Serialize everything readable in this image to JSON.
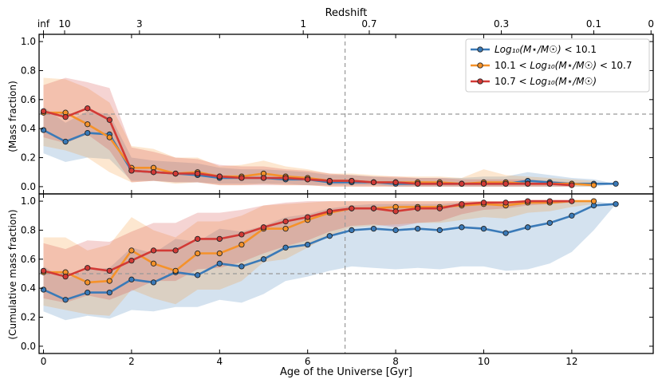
{
  "figure": {
    "top_axis_label": "Redshift",
    "top_ticks": [
      {
        "label": "inf",
        "age": 0
      },
      {
        "label": "10",
        "age": 0.48
      },
      {
        "label": "3",
        "age": 2.18
      },
      {
        "label": "1",
        "age": 5.9
      },
      {
        "label": "0.7",
        "age": 7.4
      },
      {
        "label": "0.3",
        "age": 10.4
      },
      {
        "label": "0.1",
        "age": 12.5
      },
      {
        "label": "0",
        "age": 13.8
      }
    ],
    "xlabel": "Age of the Universe [Gyr]",
    "x_ticks": [
      0,
      2,
      4,
      6,
      8,
      10,
      12
    ],
    "xlim": [
      -0.1,
      13.85
    ],
    "vline_x": 6.85,
    "hline_y": 0.5,
    "legend": {
      "entries": [
        {
          "prefix": "",
          "math": "Log₁₀(M⋆/M☉)",
          "suffix": " < 10.1",
          "color": "#3a7ab8"
        },
        {
          "prefix": "10.1 < ",
          "math": "Log₁₀(M⋆/M☉)",
          "suffix": " < 10.7",
          "color": "#f5922a"
        },
        {
          "prefix": "10.7 < ",
          "math": "Log₁₀(M⋆/M☉)",
          "suffix": "",
          "color": "#d23a36"
        }
      ]
    }
  },
  "chart_data": [
    {
      "type": "line",
      "panel": "top",
      "ylabel": "(Mass fraction)",
      "ylim": [
        -0.05,
        1.05
      ],
      "y_ticks": [
        "0.0",
        "0.2",
        "0.4",
        "0.6",
        "0.8",
        "1.0"
      ],
      "series": [
        {
          "name": "Log₁₀(M⋆/M☉) < 10.1",
          "color": "#3a7ab8",
          "x": [
            0,
            0.5,
            1.0,
            1.5,
            2.0,
            2.5,
            3.0,
            3.5,
            4.0,
            4.5,
            5.0,
            5.5,
            6.0,
            6.5,
            7.0,
            7.5,
            8.0,
            8.5,
            9.0,
            9.5,
            10.0,
            10.5,
            11.0,
            11.5,
            12.0,
            12.5,
            13.0
          ],
          "y": [
            0.39,
            0.31,
            0.37,
            0.36,
            0.11,
            0.1,
            0.09,
            0.08,
            0.06,
            0.06,
            0.06,
            0.05,
            0.05,
            0.03,
            0.03,
            0.03,
            0.02,
            0.02,
            0.02,
            0.02,
            0.02,
            0.02,
            0.04,
            0.03,
            0.02,
            0.02,
            0.02
          ],
          "band_low": [
            0.23,
            0.17,
            0.2,
            0.19,
            0.04,
            0.04,
            0.03,
            0.03,
            0.02,
            0.02,
            0.02,
            0.02,
            0.01,
            0.01,
            0.01,
            0.01,
            0.0,
            0.0,
            0.0,
            0.0,
            0.0,
            0.0,
            0.0,
            0.0,
            0.0,
            0.0,
            0.02
          ],
          "band_high": [
            0.55,
            0.44,
            0.52,
            0.5,
            0.2,
            0.18,
            0.17,
            0.16,
            0.13,
            0.12,
            0.12,
            0.11,
            0.1,
            0.08,
            0.08,
            0.07,
            0.06,
            0.06,
            0.06,
            0.06,
            0.07,
            0.07,
            0.1,
            0.08,
            0.06,
            0.05,
            0.02
          ]
        },
        {
          "name": "10.1 < Log₁₀(M⋆/M☉) < 10.7",
          "color": "#f5922a",
          "x": [
            0,
            0.5,
            1.0,
            1.5,
            2.0,
            2.5,
            3.0,
            3.5,
            4.0,
            4.5,
            5.0,
            5.5,
            6.0,
            6.5,
            7.0,
            7.5,
            8.0,
            8.5,
            9.0,
            9.5,
            10.0,
            10.5,
            11.0,
            11.5,
            12.0,
            12.5
          ],
          "y": [
            0.51,
            0.51,
            0.43,
            0.34,
            0.13,
            0.13,
            0.09,
            0.1,
            0.07,
            0.07,
            0.09,
            0.07,
            0.06,
            0.04,
            0.04,
            0.03,
            0.03,
            0.03,
            0.03,
            0.02,
            0.03,
            0.03,
            0.02,
            0.02,
            0.02,
            0.01
          ],
          "band_low": [
            0.28,
            0.25,
            0.2,
            0.1,
            0.03,
            0.04,
            0.02,
            0.03,
            0.01,
            0.01,
            0.02,
            0.01,
            0.01,
            0.0,
            0.0,
            0.0,
            0.0,
            0.0,
            0.0,
            0.0,
            0.0,
            0.0,
            0.0,
            0.0,
            0.0,
            0.0
          ],
          "band_high": [
            0.75,
            0.74,
            0.68,
            0.58,
            0.28,
            0.26,
            0.2,
            0.2,
            0.14,
            0.15,
            0.18,
            0.14,
            0.12,
            0.09,
            0.09,
            0.08,
            0.07,
            0.07,
            0.07,
            0.06,
            0.12,
            0.08,
            0.07,
            0.06,
            0.05,
            0.04
          ]
        },
        {
          "name": "10.7 < Log₁₀(M⋆/M☉)",
          "color": "#d23a36",
          "x": [
            0,
            0.5,
            1.0,
            1.5,
            2.0,
            2.5,
            3.0,
            3.5,
            4.0,
            4.5,
            5.0,
            5.5,
            6.0,
            6.5,
            7.0,
            7.5,
            8.0,
            8.5,
            9.0,
            9.5,
            10.0,
            10.5,
            11.0,
            11.5,
            12.0
          ],
          "y": [
            0.52,
            0.48,
            0.54,
            0.46,
            0.11,
            0.1,
            0.09,
            0.09,
            0.07,
            0.06,
            0.06,
            0.06,
            0.05,
            0.04,
            0.04,
            0.03,
            0.03,
            0.02,
            0.02,
            0.02,
            0.02,
            0.02,
            0.02,
            0.02,
            0.01
          ],
          "band_low": [
            0.34,
            0.3,
            0.36,
            0.25,
            0.03,
            0.04,
            0.03,
            0.03,
            0.01,
            0.01,
            0.01,
            0.01,
            0.01,
            0.0,
            0.0,
            0.0,
            0.0,
            0.0,
            0.0,
            0.0,
            0.0,
            0.0,
            0.0,
            0.0,
            0.0
          ],
          "band_high": [
            0.7,
            0.75,
            0.72,
            0.68,
            0.27,
            0.24,
            0.2,
            0.19,
            0.15,
            0.14,
            0.14,
            0.12,
            0.11,
            0.09,
            0.08,
            0.07,
            0.07,
            0.06,
            0.06,
            0.05,
            0.05,
            0.05,
            0.05,
            0.04,
            0.03
          ]
        }
      ]
    },
    {
      "type": "line",
      "panel": "bottom",
      "ylabel": "(Cumulative mass fraction)",
      "ylim": [
        -0.05,
        1.05
      ],
      "y_ticks": [
        "0.0",
        "0.2",
        "0.4",
        "0.6",
        "0.8",
        "1.0"
      ],
      "series": [
        {
          "name": "Log₁₀(M⋆/M☉) < 10.1",
          "color": "#3a7ab8",
          "x": [
            0,
            0.5,
            1.0,
            1.5,
            2.0,
            2.5,
            3.0,
            3.5,
            4.0,
            4.5,
            5.0,
            5.5,
            6.0,
            6.5,
            7.0,
            7.5,
            8.0,
            8.5,
            9.0,
            9.5,
            10.0,
            10.5,
            11.0,
            11.5,
            12.0,
            12.5,
            13.0
          ],
          "y": [
            0.39,
            0.32,
            0.37,
            0.37,
            0.46,
            0.44,
            0.51,
            0.49,
            0.57,
            0.55,
            0.6,
            0.68,
            0.7,
            0.76,
            0.8,
            0.81,
            0.8,
            0.81,
            0.8,
            0.82,
            0.81,
            0.78,
            0.82,
            0.85,
            0.9,
            0.97,
            0.98
          ],
          "band_low": [
            0.24,
            0.18,
            0.21,
            0.19,
            0.25,
            0.24,
            0.27,
            0.27,
            0.32,
            0.3,
            0.36,
            0.45,
            0.48,
            0.52,
            0.55,
            0.54,
            0.53,
            0.54,
            0.53,
            0.55,
            0.55,
            0.52,
            0.53,
            0.57,
            0.65,
            0.8,
            0.98
          ],
          "band_high": [
            0.55,
            0.46,
            0.53,
            0.54,
            0.68,
            0.64,
            0.74,
            0.72,
            0.81,
            0.79,
            0.83,
            0.89,
            0.91,
            0.95,
            0.97,
            0.98,
            0.98,
            0.98,
            0.98,
            0.99,
            0.98,
            0.98,
            0.99,
            0.99,
            1.0,
            1.0,
            0.98
          ]
        },
        {
          "name": "10.1 < Log₁₀(M⋆/M☉) < 10.7",
          "color": "#f5922a",
          "x": [
            0,
            0.5,
            1.0,
            1.5,
            2.0,
            2.5,
            3.0,
            3.5,
            4.0,
            4.5,
            5.0,
            5.5,
            6.0,
            6.5,
            7.0,
            7.5,
            8.0,
            8.5,
            9.0,
            9.5,
            10.0,
            10.5,
            11.0,
            11.5,
            12.0,
            12.5
          ],
          "y": [
            0.51,
            0.51,
            0.44,
            0.45,
            0.66,
            0.57,
            0.52,
            0.64,
            0.64,
            0.7,
            0.81,
            0.81,
            0.87,
            0.92,
            0.95,
            0.95,
            0.96,
            0.96,
            0.96,
            0.97,
            0.98,
            0.97,
            0.99,
            0.99,
            1.0,
            1.0
          ],
          "band_low": [
            0.28,
            0.25,
            0.22,
            0.21,
            0.39,
            0.33,
            0.29,
            0.39,
            0.39,
            0.45,
            0.58,
            0.6,
            0.68,
            0.76,
            0.82,
            0.83,
            0.84,
            0.85,
            0.85,
            0.87,
            0.89,
            0.88,
            0.92,
            0.93,
            0.96,
            0.98
          ],
          "band_high": [
            0.75,
            0.75,
            0.66,
            0.7,
            0.89,
            0.8,
            0.75,
            0.86,
            0.86,
            0.9,
            0.97,
            0.98,
            0.99,
            1.0,
            1.0,
            1.0,
            1.0,
            1.0,
            1.0,
            1.0,
            1.0,
            1.0,
            1.0,
            1.0,
            1.0,
            1.0
          ]
        },
        {
          "name": "10.7 < Log₁₀(M⋆/M☉)",
          "color": "#d23a36",
          "x": [
            0,
            0.5,
            1.0,
            1.5,
            2.0,
            2.5,
            3.0,
            3.5,
            4.0,
            4.5,
            5.0,
            5.5,
            6.0,
            6.5,
            7.0,
            7.5,
            8.0,
            8.5,
            9.0,
            9.5,
            10.0,
            10.5,
            11.0,
            11.5,
            12.0
          ],
          "y": [
            0.52,
            0.48,
            0.54,
            0.52,
            0.59,
            0.66,
            0.66,
            0.74,
            0.74,
            0.77,
            0.82,
            0.86,
            0.89,
            0.93,
            0.95,
            0.95,
            0.93,
            0.95,
            0.95,
            0.98,
            0.99,
            0.99,
            1.0,
            1.0,
            1.0
          ],
          "band_low": [
            0.33,
            0.3,
            0.35,
            0.32,
            0.38,
            0.45,
            0.45,
            0.53,
            0.54,
            0.58,
            0.64,
            0.69,
            0.73,
            0.79,
            0.83,
            0.84,
            0.82,
            0.85,
            0.86,
            0.91,
            0.94,
            0.95,
            0.97,
            0.98,
            0.99
          ],
          "band_high": [
            0.71,
            0.67,
            0.73,
            0.72,
            0.79,
            0.85,
            0.85,
            0.92,
            0.92,
            0.94,
            0.97,
            0.99,
            1.0,
            1.0,
            1.0,
            1.0,
            1.0,
            1.0,
            1.0,
            1.0,
            1.0,
            1.0,
            1.0,
            1.0,
            1.0
          ]
        }
      ]
    }
  ]
}
